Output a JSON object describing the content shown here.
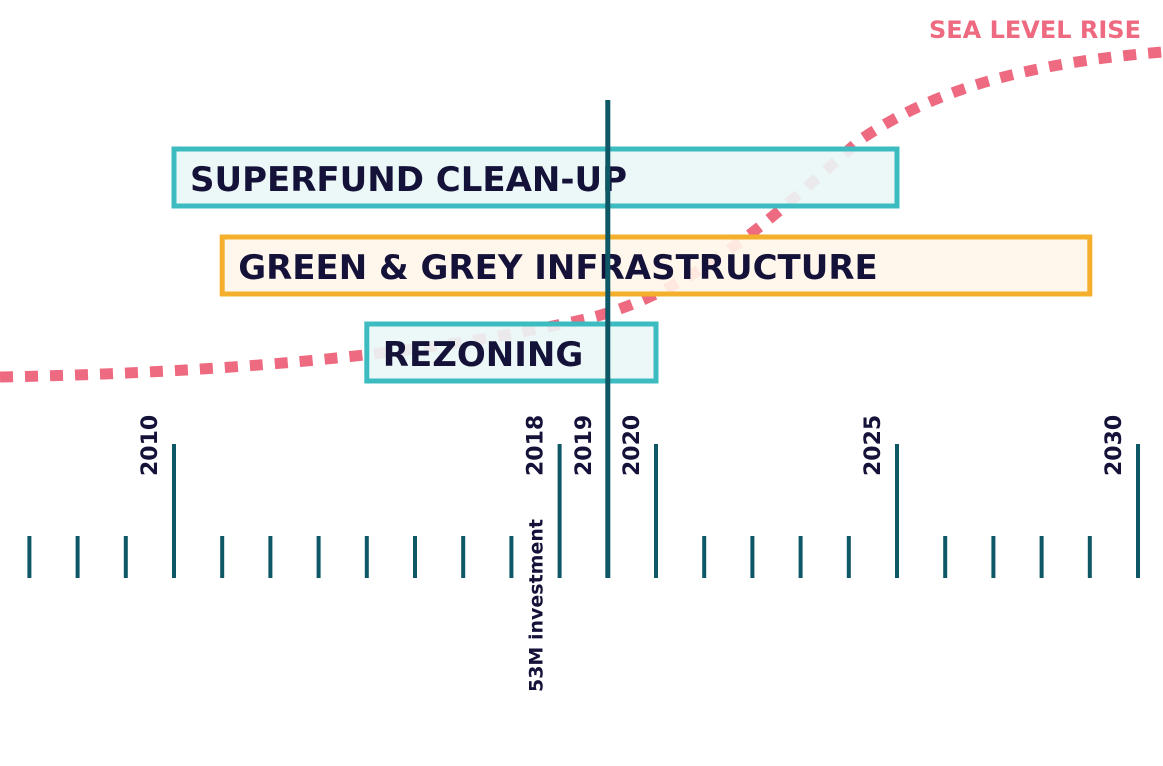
{
  "colors": {
    "tick": "#0d5766",
    "teal_stroke": "#3cbcc1",
    "teal_fill": "#eaf7f7",
    "orange_stroke": "#f4b02c",
    "orange_fill": "#fff6ea",
    "sea_level": "#ee6a80",
    "text": "#141238"
  },
  "sea_level": {
    "label": "SEA LEVEL RISE"
  },
  "current_year": 2019,
  "years": [
    {
      "year": 2010,
      "label": "2010"
    },
    {
      "year": 2018,
      "label": "2018"
    },
    {
      "year": 2019,
      "label": "2019"
    },
    {
      "year": 2020,
      "label": "2020"
    },
    {
      "year": 2025,
      "label": "2025"
    },
    {
      "year": 2030,
      "label": "2030"
    }
  ],
  "annotations": [
    {
      "year": 2018,
      "text": "53M investment"
    }
  ],
  "bars": [
    {
      "label": "SUPERFUND CLEAN-UP",
      "start": 2010,
      "end": 2025,
      "color": "teal"
    },
    {
      "label": "GREEN & GREY INFRASTRUCTURE",
      "start": 2011,
      "end": 2029,
      "color": "orange"
    },
    {
      "label": "REZONING",
      "start": 2014,
      "end": 2020,
      "color": "teal"
    }
  ]
}
